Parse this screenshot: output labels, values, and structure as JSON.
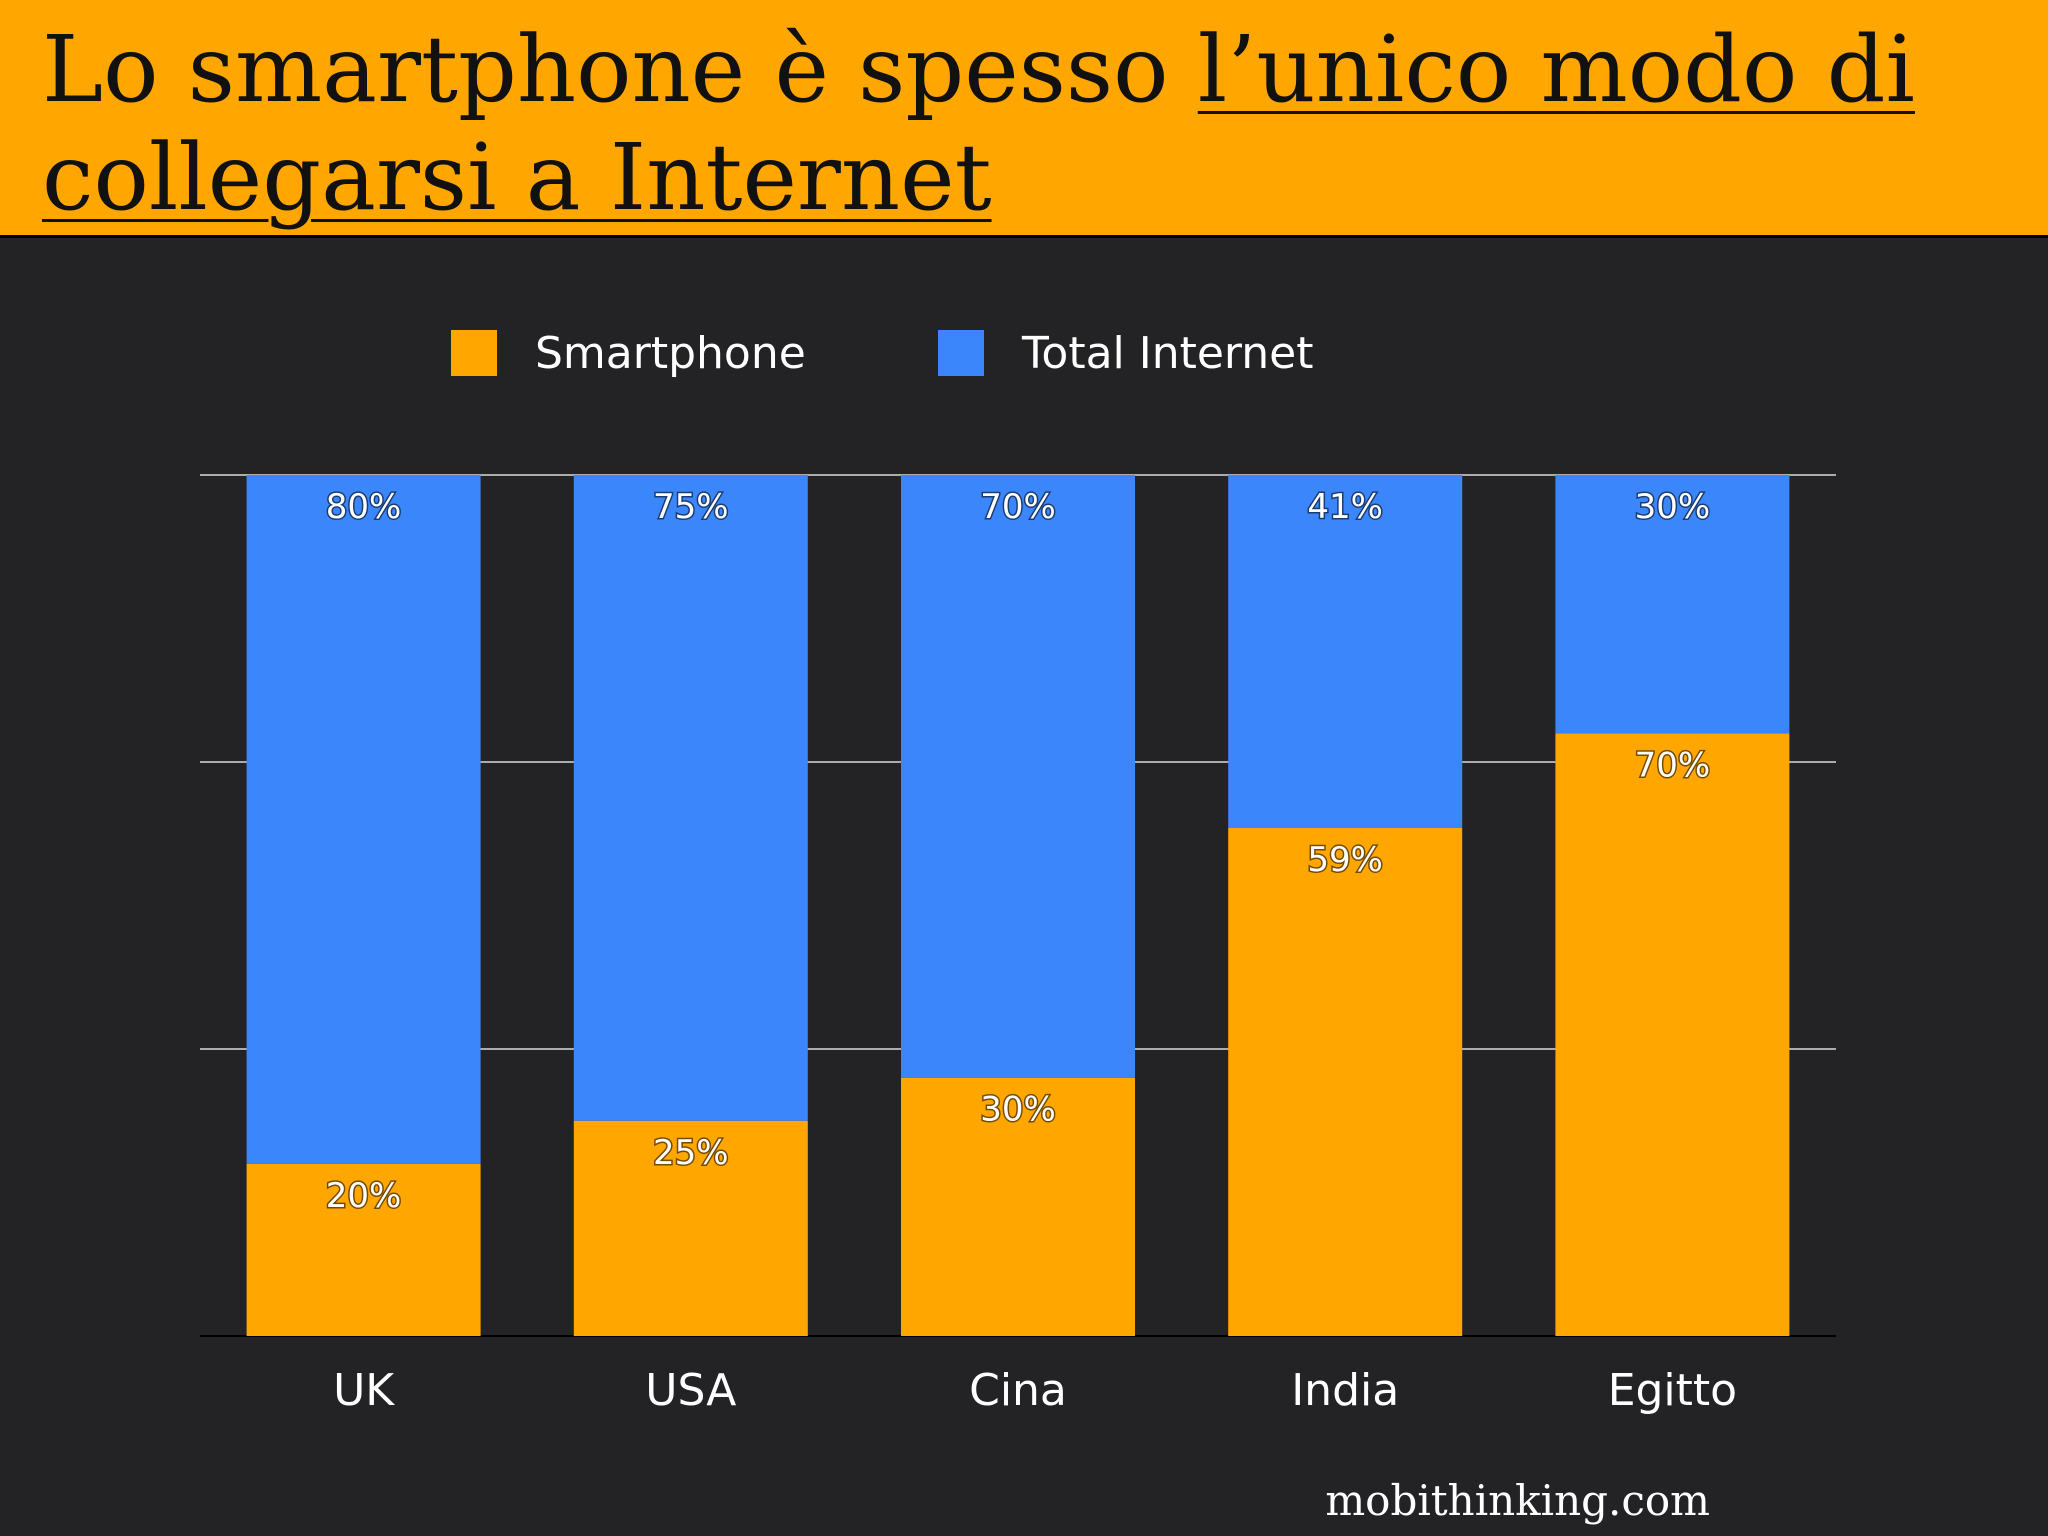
{
  "header": {
    "title_part1": "Lo smartphone è spesso ",
    "title_part2": "l’unico modo di collegarsi a Internet"
  },
  "source": "mobithinking.com",
  "colors": {
    "header_bg": "#ffa600",
    "background": "#232225",
    "smartphone": "#ffa600",
    "total_internet": "#3b86fb",
    "grid": "#d9d9d9"
  },
  "chart_data": {
    "type": "bar",
    "stacked": true,
    "categories": [
      "UK",
      "USA",
      "Cina",
      "India",
      "Egitto"
    ],
    "series": [
      {
        "name": "Smartphone",
        "values": [
          20,
          25,
          30,
          59,
          70
        ],
        "labels": [
          "20%",
          "25%",
          "30%",
          "59%",
          "70%"
        ],
        "color": "#ffa600"
      },
      {
        "name": "Total Internet",
        "values": [
          80,
          75,
          70,
          41,
          30
        ],
        "labels": [
          "80%",
          "75%",
          "70%",
          "41%",
          "30%"
        ],
        "color": "#3b86fb"
      }
    ],
    "ylim": [
      0,
      100
    ],
    "yticks": [
      0,
      33.3,
      66.7,
      100
    ],
    "grid": true,
    "legend_position": "top-center",
    "title": "",
    "xlabel": "",
    "ylabel": ""
  }
}
